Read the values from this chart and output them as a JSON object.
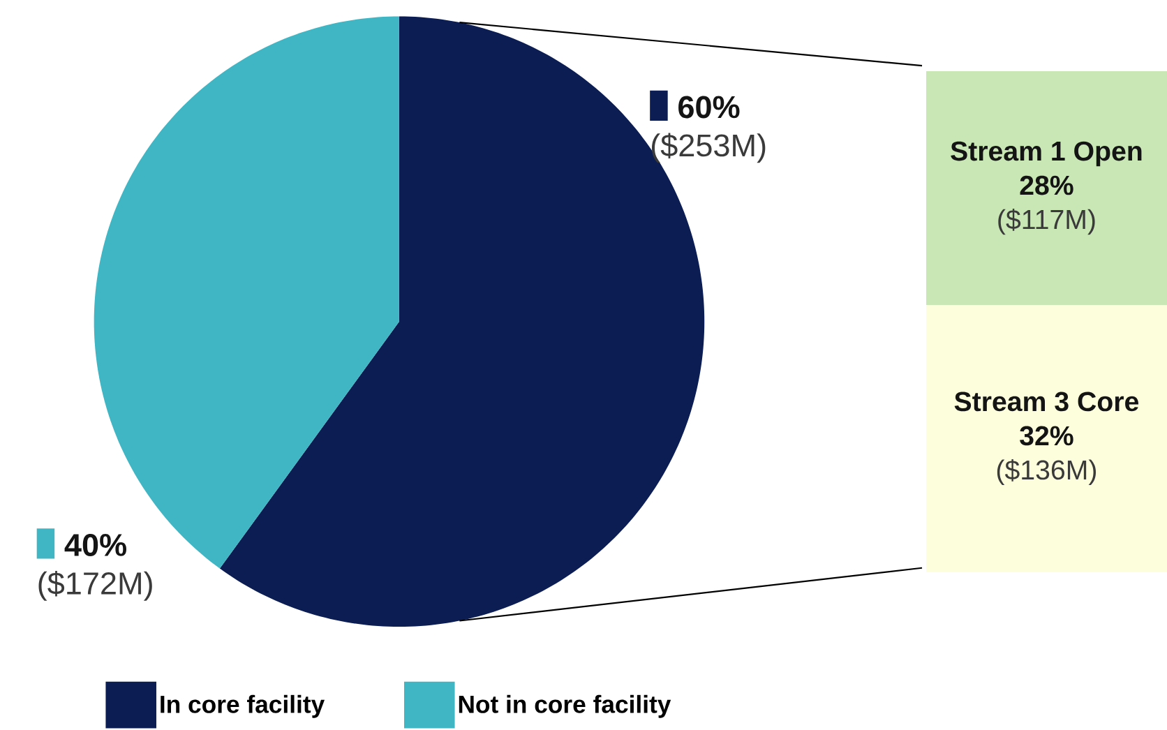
{
  "chart_data": [
    {
      "type": "pie",
      "categories": [
        "In core facility",
        "Not in core facility"
      ],
      "values": [
        60,
        40
      ],
      "colors": [
        "#0b1d52",
        "#40b6c4"
      ],
      "value_labels": [
        "60%",
        "40%"
      ],
      "annotations": [
        "($253M)",
        "($172M)"
      ],
      "legend": "bottom"
    },
    {
      "type": "bar",
      "stacked": true,
      "categories": [
        null
      ],
      "series": [
        {
          "name": "Stream 3 Core",
          "color": "#fdfedb",
          "values": [
            32
          ],
          "value_labels": [
            "32%"
          ]
        },
        {
          "name": "Stream 1 Open",
          "color": "#c8e7b5",
          "values": [
            28
          ],
          "value_labels": [
            "28%"
          ]
        }
      ],
      "annotations": [
        "($136M)",
        "($117M)"
      ]
    }
  ]
}
